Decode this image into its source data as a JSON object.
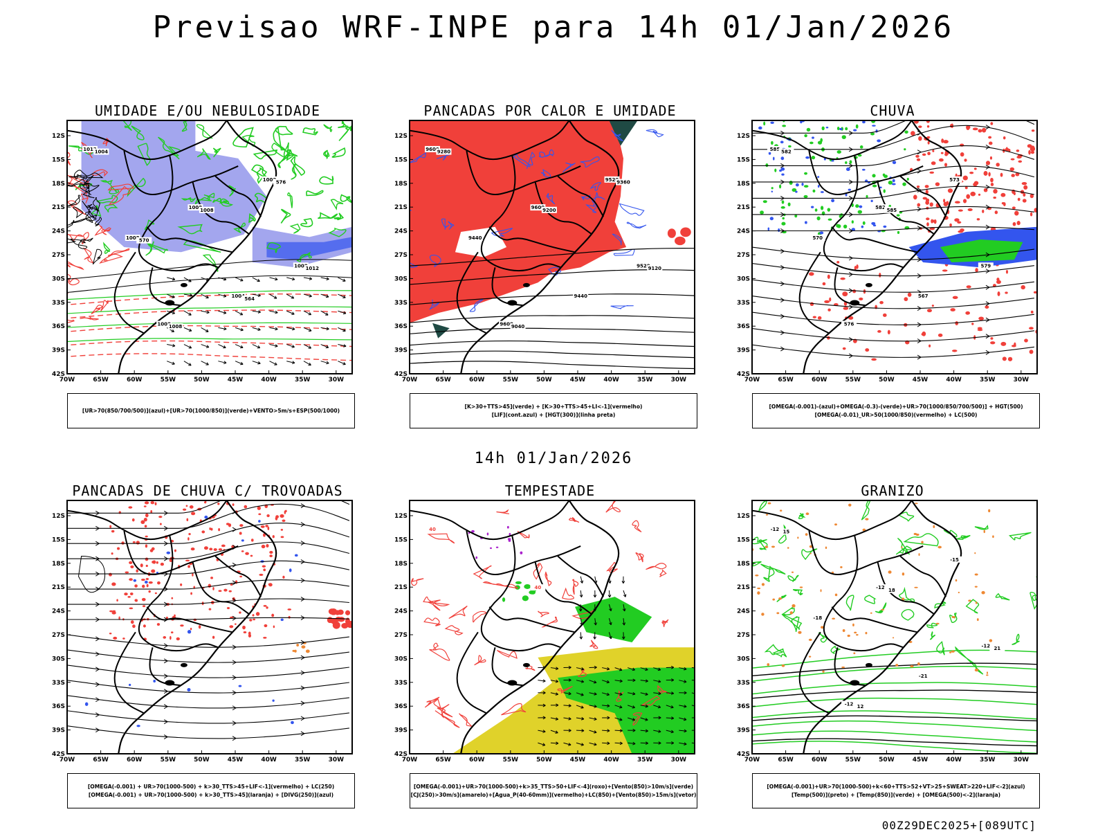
{
  "title": "Previsao WRF-INPE  para 14h 01/Jan/2026",
  "subtitle": "14h 01/Jan/2026",
  "run_stamp": "00Z29DEC2025+[089UTC]",
  "axes": {
    "lat_labels": [
      "12S",
      "15S",
      "18S",
      "21S",
      "24S",
      "27S",
      "30S",
      "33S",
      "36S",
      "39S",
      "42S"
    ],
    "lon_labels": [
      "70W",
      "65W",
      "60W",
      "55W",
      "50W",
      "45W",
      "40W",
      "35W",
      "30W"
    ]
  },
  "colors": {
    "red": "#f0403a",
    "green": "#22cc22",
    "blue": "#3355ee",
    "lavender": "#a3a6ee",
    "yellow": "#e0d22a",
    "darkgreen": "#1f4a44",
    "orange": "#ee8833",
    "purple": "#aa22cc"
  },
  "panels": [
    {
      "title": "UMIDADE E/OU NEBULOSIDADE",
      "legend": [
        "[UR>70(850/700/500)](azul)+[UR>70(1000/850)](verde)+VENTO>5m/s+ESP(500/1000)"
      ],
      "labels": [
        "1012",
        "1008",
        "1008",
        "1008",
        "1008",
        "1008",
        "1004",
        "1004",
        "1008",
        "1012",
        "1008",
        "576",
        "570",
        "564"
      ]
    },
    {
      "title": "PANCADAS POR CALOR E UMIDADE",
      "legend": [
        "[K>30+TTS>45](verde) + [K>30+TTS>45+LI<-1](vermelho)",
        "[LIF](cont.azul) + [HGT(300)](linha preta)"
      ],
      "labels": [
        "9600",
        "9600",
        "9520",
        "9600",
        "9520",
        "9440",
        "9440",
        "9280",
        "9200",
        "9120",
        "9040",
        "9360"
      ]
    },
    {
      "title": "CHUVA",
      "legend": [
        "[OMEGA(-0.001)-(azul)+OMEGA(-0.3)-(verde)+UR>70(1000/850/700/500)] + HGT(500)",
        "[OMEGA(-0.01)_UR>50(1000/850)(vermelho) + LC(500)"
      ],
      "labels": [
        "585",
        "582",
        "579",
        "576",
        "573",
        "570",
        "567",
        "582",
        "585"
      ]
    },
    {
      "title": "PANCADAS DE CHUVA C/ TROVOADAS",
      "legend": [
        "[OMEGA(-0.001) + UR>70(1000-500) + k>30_TTS>45+LIF<-1](vermelho) + LC(250)",
        "[OMEGA(-0.001) + UR>70(1000-500) + k>30_TTS>45](laranja) + [DIVG(250)](azul)"
      ],
      "labels": []
    },
    {
      "title": "TEMPESTADE",
      "legend": [
        "[OMEGA(-0.001)+UR>70(1000-500)+k>35_TTS>50+LIF<-4](roxo)+[Vento(850)>10m/s](verde)",
        "[CJ(250)>30m/s](amarelo)+[Agua_P(40-60mm)](vermelho)+LC(850)+[Vento(850)>15m/s](vetor)"
      ],
      "labels": [
        "40",
        "40"
      ]
    },
    {
      "title": "GRANIZO",
      "legend": [
        "[OMEGA(-0.001)+UR>70(1000-500)+k<60+TTS>52+VT>25+SWEAT>220+LIF<-2](azul)",
        "[Temp(500)](preto) + [Temp(850)](verde) + [OMEGA(500)<-2](laranja)"
      ],
      "labels": [
        "-12",
        "-12",
        "-12",
        "-12",
        "-15",
        "-18",
        "-21",
        "15",
        "18",
        "21",
        "12"
      ]
    }
  ]
}
